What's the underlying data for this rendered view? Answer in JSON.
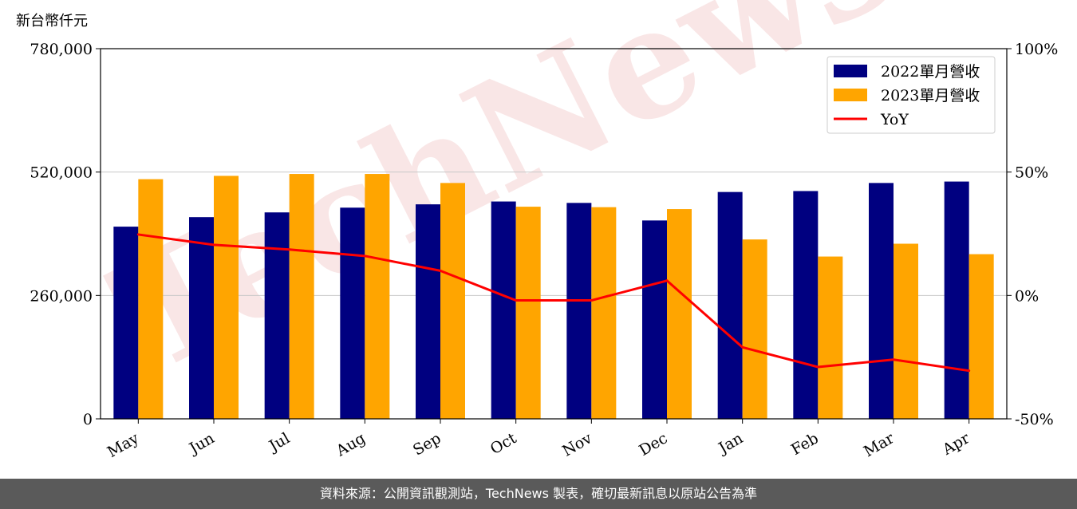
{
  "unit_label": "新台幣仟元",
  "footer_text": "資料來源：公開資訊觀測站，TechNews 製表，確切最新訊息以原站公告為準",
  "watermark": "TechNews",
  "chart_data": {
    "type": "bar",
    "categories": [
      "May",
      "Jun",
      "Jul",
      "Aug",
      "Sep",
      "Oct",
      "Nov",
      "Dec",
      "Jan",
      "Feb",
      "Mar",
      "Apr"
    ],
    "series": [
      {
        "name": "2022單月營收",
        "type": "bar",
        "color": "#000080",
        "values": [
          405000,
          425000,
          435000,
          445000,
          452000,
          458000,
          455000,
          418000,
          478000,
          480000,
          497000,
          500000
        ]
      },
      {
        "name": "2023單月營收",
        "type": "bar",
        "color": "#ffa500",
        "values": [
          505000,
          512000,
          516000,
          516000,
          497000,
          447000,
          446000,
          442000,
          378000,
          342000,
          369000,
          347000
        ]
      },
      {
        "name": "YoY",
        "type": "line",
        "color": "#ff0000",
        "axis": "right",
        "values": [
          24.7,
          20.5,
          18.6,
          16.0,
          10.0,
          -2.0,
          -2.0,
          6.0,
          -21.0,
          -29.0,
          -26.0,
          -30.5
        ]
      }
    ],
    "y_left": {
      "ticks": [
        "0",
        "260,000",
        "520,000",
        "780,000"
      ],
      "ylim": [
        0,
        780000
      ]
    },
    "y_right": {
      "ticks": [
        "-50%",
        "0%",
        "50%",
        "100%"
      ],
      "ylim": [
        -50,
        100
      ]
    },
    "grid": "horizontal",
    "legend_position": "top-right"
  }
}
